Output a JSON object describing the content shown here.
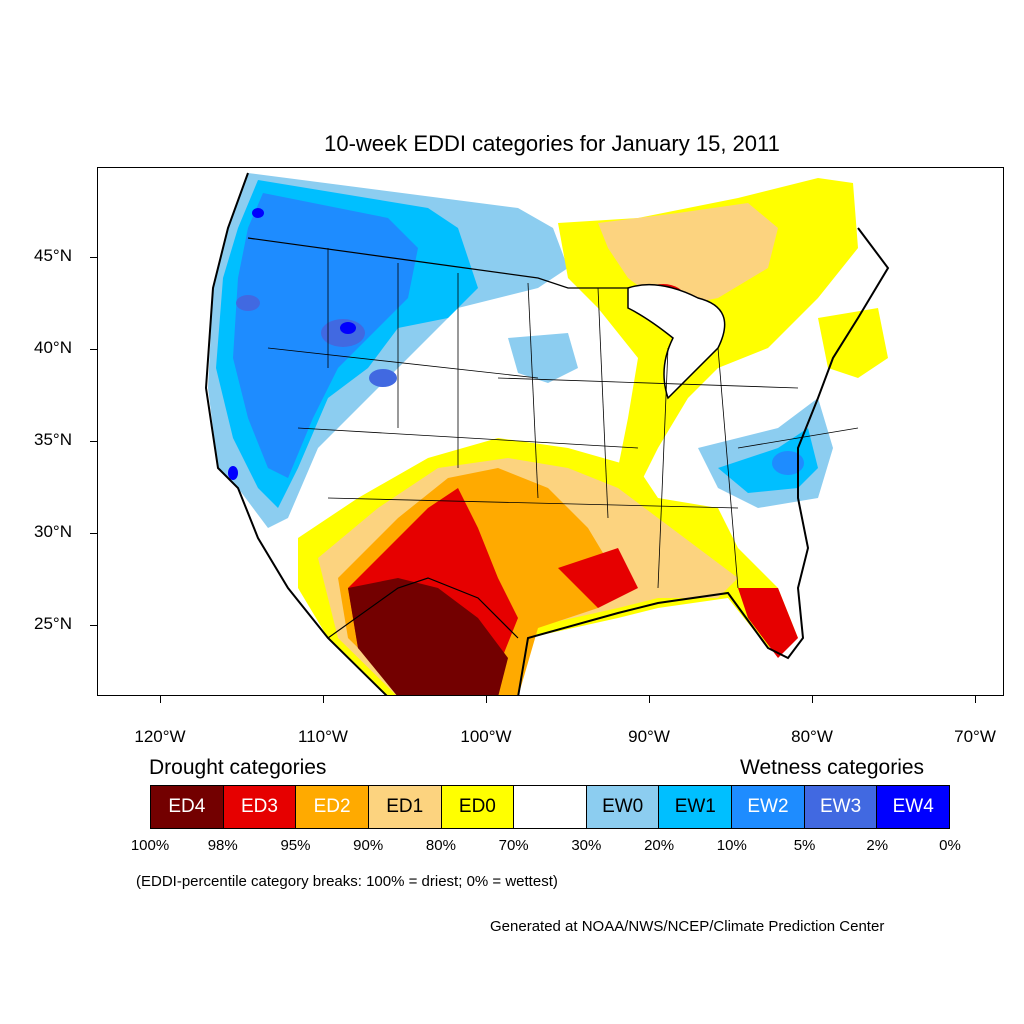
{
  "title": "10-week EDDI categories for January 15, 2011",
  "axes": {
    "y_ticks": [
      "45°N",
      "40°N",
      "35°N",
      "30°N",
      "25°N"
    ],
    "x_ticks": [
      "120°W",
      "110°W",
      "100°W",
      "90°W",
      "80°W",
      "70°W"
    ]
  },
  "legend": {
    "drought_heading": "Drought categories",
    "wetness_heading": "Wetness categories",
    "categories": [
      {
        "label": "ED4",
        "color": "#730000",
        "text_color": "#ffffff"
      },
      {
        "label": "ED3",
        "color": "#e60000",
        "text_color": "#ffffff"
      },
      {
        "label": "ED2",
        "color": "#ffaa00",
        "text_color": "#ffffff"
      },
      {
        "label": "ED1",
        "color": "#fcd37f",
        "text_color": "#000000"
      },
      {
        "label": "ED0",
        "color": "#ffff00",
        "text_color": "#000000"
      },
      {
        "label": "",
        "color": "#ffffff",
        "text_color": "#000000"
      },
      {
        "label": "EW0",
        "color": "#8ccdf0",
        "text_color": "#000000"
      },
      {
        "label": "EW1",
        "color": "#00bfff",
        "text_color": "#000000"
      },
      {
        "label": "EW2",
        "color": "#1e8cff",
        "text_color": "#ffffff"
      },
      {
        "label": "EW3",
        "color": "#4169e1",
        "text_color": "#ffffff"
      },
      {
        "label": "EW4",
        "color": "#0000ff",
        "text_color": "#ffffff"
      }
    ],
    "breaks": [
      "100%",
      "98%",
      "95%",
      "90%",
      "80%",
      "70%",
      "30%",
      "20%",
      "10%",
      "5%",
      "2%",
      "0%"
    ]
  },
  "note": "(EDDI-percentile category breaks: 100% = driest; 0% = wettest)",
  "credit": "Generated at NOAA/NWS/NCEP/Climate Prediction Center"
}
